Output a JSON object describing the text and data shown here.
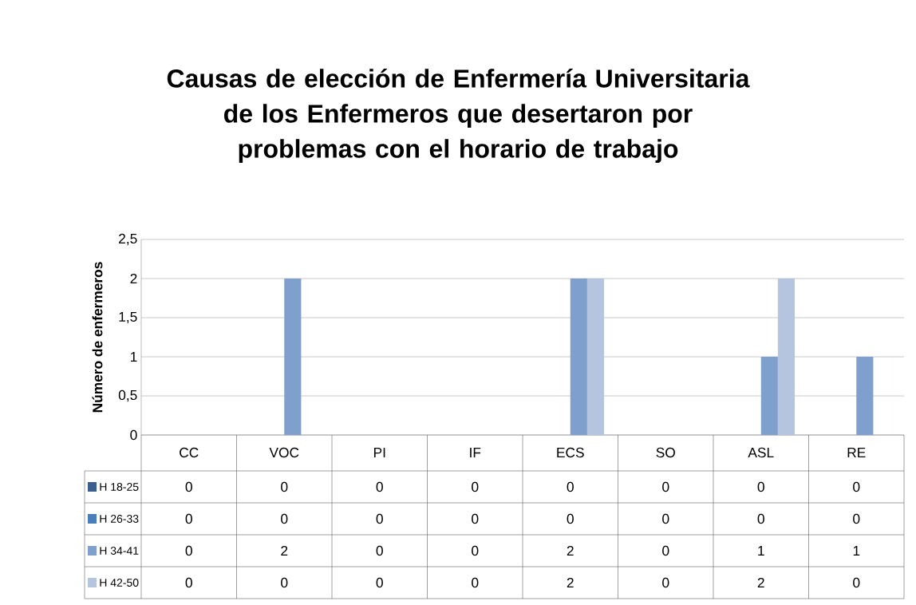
{
  "chart_data": {
    "type": "bar",
    "title": "Causas de elección de Enfermería Universitaria de los Enfermeros que desertaron por problemas con el horario de trabajo",
    "ylabel": "Número de enfermeros",
    "categories": [
      "CC",
      "VOC",
      "PI",
      "IF",
      "ECS",
      "SO",
      "ASL",
      "RE"
    ],
    "series": [
      {
        "name": "H 18-25",
        "color": "#3d5f8f",
        "values": [
          0,
          0,
          0,
          0,
          0,
          0,
          0,
          0
        ]
      },
      {
        "name": "H 26-33",
        "color": "#4a7ebb",
        "values": [
          0,
          0,
          0,
          0,
          0,
          0,
          0,
          0
        ]
      },
      {
        "name": "H 34-41",
        "color": "#7f9fcd",
        "values": [
          0,
          2,
          0,
          0,
          2,
          0,
          1,
          1
        ]
      },
      {
        "name": "H 42-50",
        "color": "#b5c4df",
        "values": [
          0,
          0,
          0,
          0,
          2,
          0,
          2,
          0
        ]
      }
    ],
    "ylim": [
      0,
      2.5
    ],
    "yticks": [
      0,
      {
        "value": 0.5,
        "label": "0,5"
      },
      1,
      {
        "value": 1.5,
        "label": "1,5"
      },
      2,
      {
        "value": 2.5,
        "label": "2,5"
      }
    ],
    "grid": "y",
    "legend": "left",
    "data_labels": true
  }
}
